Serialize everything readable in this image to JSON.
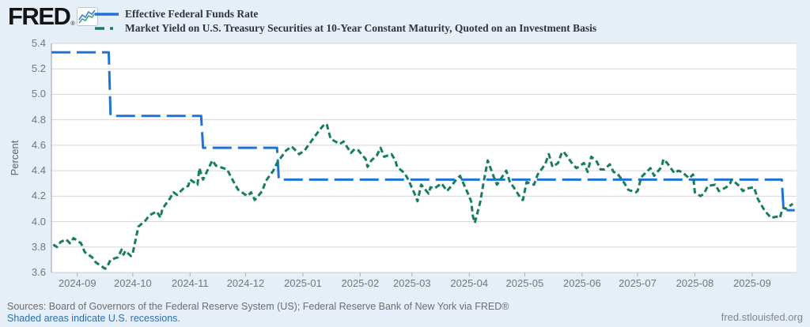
{
  "header": {
    "logo_text": "FRED",
    "registered_mark": "®"
  },
  "legend": {
    "items": [
      {
        "label": "Effective Federal Funds Rate",
        "color": "#1f72d9",
        "marker": "solid"
      },
      {
        "label": "Market Yield on U.S. Treasury Securities at 10-Year Constant Maturity, Quoted on an Investment Basis",
        "color": "#177d5f",
        "marker": "dash-dot"
      }
    ]
  },
  "chart_data": {
    "type": "line",
    "title": "",
    "xlabel": "",
    "ylabel": "Percent",
    "ylim": [
      3.6,
      5.4
    ],
    "grid": true,
    "legend_position": "top-left",
    "y_ticks": [
      "5.4",
      "5.2",
      "5.0",
      "4.8",
      "4.6",
      "4.4",
      "4.2",
      "4.0",
      "3.8",
      "3.6"
    ],
    "x_ticks": [
      "2024-09",
      "2024-10",
      "2024-11",
      "2024-12",
      "2025-01",
      "2025-02",
      "2025-03",
      "2025-04",
      "2025-05",
      "2025-06",
      "2025-07",
      "2025-08",
      "2025-09"
    ],
    "x_domain": [
      "2024-08-18",
      "2025-09-25"
    ],
    "series": [
      {
        "name": "Effective Federal Funds Rate",
        "color": "#1f72d9",
        "dash": "long-dash",
        "points": [
          [
            "2024-08-18",
            5.33
          ],
          [
            "2024-09-18",
            5.33
          ],
          [
            "2024-09-19",
            4.83
          ],
          [
            "2024-11-07",
            4.83
          ],
          [
            "2024-11-08",
            4.58
          ],
          [
            "2024-12-18",
            4.58
          ],
          [
            "2024-12-19",
            4.33
          ],
          [
            "2025-09-17",
            4.33
          ],
          [
            "2025-09-18",
            4.09
          ],
          [
            "2025-09-24",
            4.09
          ]
        ]
      },
      {
        "name": "Market Yield on U.S. Treasury Securities at 10-Year Constant Maturity, Quoted on an Investment Basis",
        "color": "#177d5f",
        "dash": "short-dash",
        "points": [
          [
            "2024-08-19",
            3.82
          ],
          [
            "2024-08-21",
            3.8
          ],
          [
            "2024-08-23",
            3.84
          ],
          [
            "2024-08-26",
            3.86
          ],
          [
            "2024-08-28",
            3.83
          ],
          [
            "2024-08-30",
            3.87
          ],
          [
            "2024-09-03",
            3.83
          ],
          [
            "2024-09-05",
            3.76
          ],
          [
            "2024-09-09",
            3.72
          ],
          [
            "2024-09-11",
            3.68
          ],
          [
            "2024-09-13",
            3.66
          ],
          [
            "2024-09-16",
            3.63
          ],
          [
            "2024-09-17",
            3.64
          ],
          [
            "2024-09-19",
            3.7
          ],
          [
            "2024-09-23",
            3.72
          ],
          [
            "2024-09-25",
            3.78
          ],
          [
            "2024-09-26",
            3.74
          ],
          [
            "2024-09-27",
            3.77
          ],
          [
            "2024-09-30",
            3.73
          ],
          [
            "2024-10-01",
            3.75
          ],
          [
            "2024-10-04",
            3.96
          ],
          [
            "2024-10-08",
            4.01
          ],
          [
            "2024-10-10",
            4.05
          ],
          [
            "2024-10-14",
            4.08
          ],
          [
            "2024-10-16",
            4.03
          ],
          [
            "2024-10-17",
            4.1
          ],
          [
            "2024-10-21",
            4.18
          ],
          [
            "2024-10-23",
            4.23
          ],
          [
            "2024-10-25",
            4.21
          ],
          [
            "2024-10-29",
            4.27
          ],
          [
            "2024-10-31",
            4.28
          ],
          [
            "2024-11-01",
            4.33
          ],
          [
            "2024-11-05",
            4.29
          ],
          [
            "2024-11-06",
            4.42
          ],
          [
            "2024-11-08",
            4.33
          ],
          [
            "2024-11-12",
            4.45
          ],
          [
            "2024-11-13",
            4.48
          ],
          [
            "2024-11-15",
            4.44
          ],
          [
            "2024-11-19",
            4.42
          ],
          [
            "2024-11-21",
            4.41
          ],
          [
            "2024-11-25",
            4.3
          ],
          [
            "2024-11-27",
            4.25
          ],
          [
            "2024-12-02",
            4.2
          ],
          [
            "2024-12-04",
            4.23
          ],
          [
            "2024-12-06",
            4.17
          ],
          [
            "2024-12-10",
            4.24
          ],
          [
            "2024-12-12",
            4.32
          ],
          [
            "2024-12-16",
            4.4
          ],
          [
            "2024-12-18",
            4.46
          ],
          [
            "2024-12-20",
            4.5
          ],
          [
            "2024-12-23",
            4.56
          ],
          [
            "2024-12-26",
            4.59
          ],
          [
            "2024-12-30",
            4.53
          ],
          [
            "2025-01-02",
            4.56
          ],
          [
            "2025-01-07",
            4.66
          ],
          [
            "2025-01-10",
            4.72
          ],
          [
            "2025-01-13",
            4.77
          ],
          [
            "2025-01-14",
            4.76
          ],
          [
            "2025-01-16",
            4.65
          ],
          [
            "2025-01-21",
            4.61
          ],
          [
            "2025-01-23",
            4.63
          ],
          [
            "2025-01-27",
            4.54
          ],
          [
            "2025-01-29",
            4.57
          ],
          [
            "2025-01-31",
            4.56
          ],
          [
            "2025-02-04",
            4.49
          ],
          [
            "2025-02-05",
            4.43
          ],
          [
            "2025-02-07",
            4.48
          ],
          [
            "2025-02-10",
            4.52
          ],
          [
            "2025-02-12",
            4.58
          ],
          [
            "2025-02-14",
            4.51
          ],
          [
            "2025-02-18",
            4.53
          ],
          [
            "2025-02-20",
            4.48
          ],
          [
            "2025-02-21",
            4.43
          ],
          [
            "2025-02-25",
            4.38
          ],
          [
            "2025-02-27",
            4.33
          ],
          [
            "2025-03-03",
            4.2
          ],
          [
            "2025-03-04",
            4.16
          ],
          [
            "2025-03-06",
            4.29
          ],
          [
            "2025-03-10",
            4.22
          ],
          [
            "2025-03-11",
            4.27
          ],
          [
            "2025-03-13",
            4.26
          ],
          [
            "2025-03-17",
            4.3
          ],
          [
            "2025-03-20",
            4.24
          ],
          [
            "2025-03-25",
            4.33
          ],
          [
            "2025-03-27",
            4.36
          ],
          [
            "2025-03-31",
            4.23
          ],
          [
            "2025-04-02",
            4.16
          ],
          [
            "2025-04-03",
            4.04
          ],
          [
            "2025-04-04",
            3.99
          ],
          [
            "2025-04-07",
            4.16
          ],
          [
            "2025-04-09",
            4.33
          ],
          [
            "2025-04-11",
            4.48
          ],
          [
            "2025-04-14",
            4.36
          ],
          [
            "2025-04-16",
            4.29
          ],
          [
            "2025-04-21",
            4.4
          ],
          [
            "2025-04-23",
            4.31
          ],
          [
            "2025-04-25",
            4.27
          ],
          [
            "2025-04-29",
            4.18
          ],
          [
            "2025-04-30",
            4.17
          ],
          [
            "2025-05-02",
            4.31
          ],
          [
            "2025-05-06",
            4.29
          ],
          [
            "2025-05-08",
            4.37
          ],
          [
            "2025-05-12",
            4.45
          ],
          [
            "2025-05-14",
            4.53
          ],
          [
            "2025-05-16",
            4.43
          ],
          [
            "2025-05-19",
            4.46
          ],
          [
            "2025-05-21",
            4.54
          ],
          [
            "2025-05-22",
            4.55
          ],
          [
            "2025-05-27",
            4.45
          ],
          [
            "2025-05-29",
            4.42
          ],
          [
            "2025-06-02",
            4.46
          ],
          [
            "2025-06-04",
            4.39
          ],
          [
            "2025-06-06",
            4.51
          ],
          [
            "2025-06-09",
            4.47
          ],
          [
            "2025-06-11",
            4.41
          ],
          [
            "2025-06-13",
            4.41
          ],
          [
            "2025-06-16",
            4.45
          ],
          [
            "2025-06-18",
            4.39
          ],
          [
            "2025-06-20",
            4.38
          ],
          [
            "2025-06-24",
            4.3
          ],
          [
            "2025-06-26",
            4.25
          ],
          [
            "2025-06-30",
            4.23
          ],
          [
            "2025-07-01",
            4.24
          ],
          [
            "2025-07-03",
            4.35
          ],
          [
            "2025-07-08",
            4.42
          ],
          [
            "2025-07-10",
            4.36
          ],
          [
            "2025-07-14",
            4.43
          ],
          [
            "2025-07-15",
            4.49
          ],
          [
            "2025-07-17",
            4.46
          ],
          [
            "2025-07-21",
            4.38
          ],
          [
            "2025-07-23",
            4.4
          ],
          [
            "2025-07-25",
            4.39
          ],
          [
            "2025-07-29",
            4.34
          ],
          [
            "2025-07-31",
            4.37
          ],
          [
            "2025-08-01",
            4.23
          ],
          [
            "2025-08-04",
            4.2
          ],
          [
            "2025-08-06",
            4.22
          ],
          [
            "2025-08-08",
            4.28
          ],
          [
            "2025-08-12",
            4.29
          ],
          [
            "2025-08-14",
            4.24
          ],
          [
            "2025-08-18",
            4.27
          ],
          [
            "2025-08-20",
            4.3
          ],
          [
            "2025-08-21",
            4.33
          ],
          [
            "2025-08-25",
            4.28
          ],
          [
            "2025-08-27",
            4.24
          ],
          [
            "2025-08-29",
            4.26
          ],
          [
            "2025-09-02",
            4.27
          ],
          [
            "2025-09-04",
            4.18
          ],
          [
            "2025-09-08",
            4.08
          ],
          [
            "2025-09-10",
            4.05
          ],
          [
            "2025-09-11",
            4.03
          ],
          [
            "2025-09-15",
            4.04
          ],
          [
            "2025-09-16",
            4.03
          ],
          [
            "2025-09-17",
            4.08
          ],
          [
            "2025-09-18",
            4.11
          ],
          [
            "2025-09-19",
            4.1
          ],
          [
            "2025-09-22",
            4.13
          ],
          [
            "2025-09-23",
            4.14
          ]
        ]
      }
    ]
  },
  "footer": {
    "sources": "Sources: Board of Governors of the Federal Reserve System (US); Federal Reserve Bank of New York via FRED®",
    "recessions_note": "Shaded areas indicate U.S. recessions.",
    "site": "fred.stlouisfed.org"
  },
  "colors": {
    "background": "#e6eef7",
    "plot_background": "#ffffff",
    "gridline": "#d7d7d7",
    "y_axis_line": "#98a2ac",
    "x_axis_line": "#c6cdd3",
    "tick": "#aab3ba",
    "axis_text": "#6d7885"
  }
}
